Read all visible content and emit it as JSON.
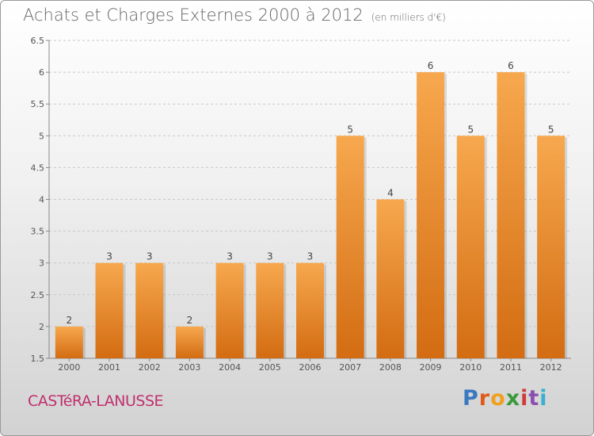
{
  "title": "Achats et Charges Externes 2000 à 2012",
  "unit_note": "(en milliers d'€)",
  "commune": "CASTéRA-LANUSSE",
  "brand": {
    "text": "Proxiti",
    "letters": [
      {
        "ch": "P",
        "color": "#3a79c0"
      },
      {
        "ch": "r",
        "color": "#e05a1a"
      },
      {
        "ch": "o",
        "color": "#f0a020"
      },
      {
        "ch": "x",
        "color": "#3a9a3a"
      },
      {
        "ch": "i",
        "color": "#d03a3a"
      },
      {
        "ch": "t",
        "color": "#8b4fb0"
      },
      {
        "ch": "i",
        "color": "#3ab0d0"
      }
    ]
  },
  "colors": {
    "bar_top": "#f7a84e",
    "bar_bottom": "#d36c12",
    "grid": "#c8c8c8",
    "axis_text": "#555555",
    "commune": "#c0306e"
  },
  "chart_data": {
    "type": "bar",
    "title": "Achats et Charges Externes 2000 à 2012",
    "categories": [
      "2000",
      "2001",
      "2002",
      "2003",
      "2004",
      "2005",
      "2006",
      "2007",
      "2008",
      "2009",
      "2010",
      "2011",
      "2012"
    ],
    "values": [
      2,
      3,
      3,
      2,
      3,
      3,
      3,
      5,
      4,
      6,
      5,
      6,
      5
    ],
    "data_labels": [
      "2",
      "3",
      "3",
      "2",
      "3",
      "3",
      "3",
      "5",
      "4",
      "6",
      "5",
      "6",
      "5"
    ],
    "ylim": [
      1.5,
      6.5
    ],
    "yticks": [
      "1.5",
      "2",
      "2.5",
      "3",
      "3.5",
      "4",
      "4.5",
      "5",
      "5.5",
      "6",
      "6.5"
    ],
    "grid": "horizontal dashed",
    "legend": "none"
  }
}
